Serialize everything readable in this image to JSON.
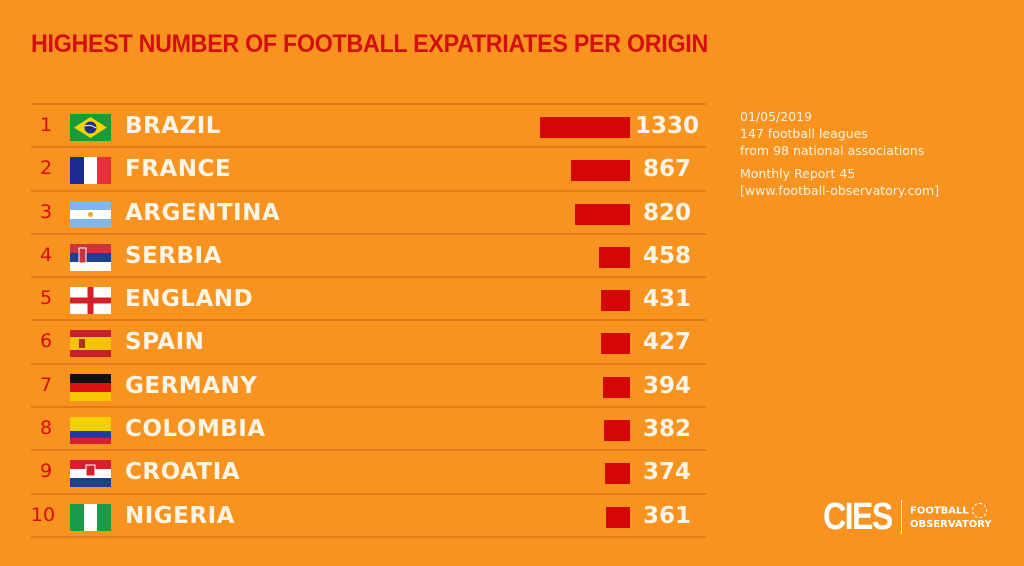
{
  "chart_data": {
    "type": "bar",
    "orientation": "horizontal",
    "title": "HIGHEST NUMBER OF FOOTBALL EXPATRIATES PER ORIGIN",
    "categories": [
      "BRAZIL",
      "FRANCE",
      "ARGENTINA",
      "SERBIA",
      "ENGLAND",
      "SPAIN",
      "GERMANY",
      "COLOMBIA",
      "CROATIA",
      "NIGERIA"
    ],
    "ranks": [
      "1",
      "2",
      "3",
      "4",
      "5",
      "6",
      "7",
      "8",
      "9",
      "10"
    ],
    "values": [
      1330,
      867,
      820,
      458,
      431,
      427,
      394,
      382,
      374,
      361
    ],
    "value_labels": [
      "1330",
      "867",
      "820",
      "458",
      "431",
      "427",
      "394",
      "382",
      "374",
      "361"
    ],
    "flags": [
      "brazil-flag",
      "france-flag",
      "argentina-flag",
      "serbia-flag",
      "england-flag",
      "spain-flag",
      "germany-flag",
      "colombia-flag",
      "croatia-flag",
      "nigeria-flag"
    ],
    "xlim": [
      0,
      1330
    ],
    "bar_color": "#d40606"
  },
  "info": {
    "date": "01/05/2019",
    "leagues": "147 football leagues",
    "associations": "from 98 national associations",
    "report": "Monthly Report 45",
    "website": "[www.football-observatory.com]"
  },
  "logo": {
    "brand": "CIES",
    "line1": "FOOTBALL",
    "line2": "OBSERVATORY"
  },
  "colors": {
    "background": "#f7931e",
    "title": "#d40f0f",
    "text": "#fff5e6"
  }
}
